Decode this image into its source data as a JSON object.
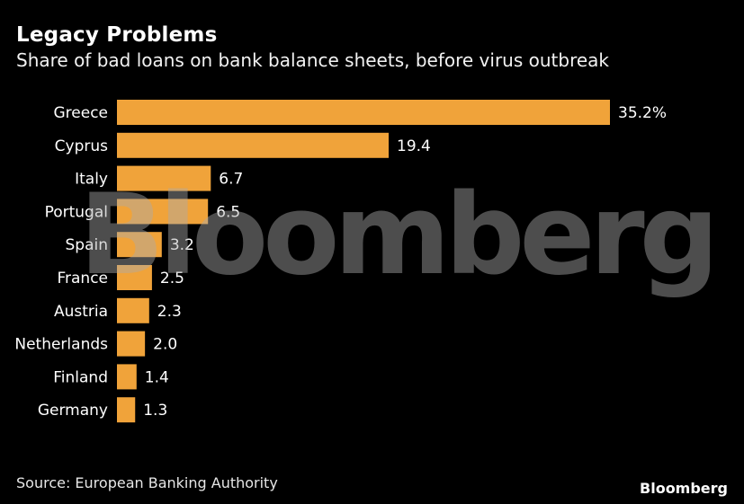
{
  "header": {
    "title": "Legacy Problems",
    "subtitle": "Share of bad loans on bank balance sheets, before virus outbreak"
  },
  "footer": {
    "source": "Source: European Banking Authority",
    "brand": "Bloomberg"
  },
  "watermark": "Bloomberg",
  "colors": {
    "background": "#000000",
    "bar": "#F0A33A",
    "text": "#FFFFFF"
  },
  "chart_data": {
    "type": "bar",
    "orientation": "horizontal",
    "categories": [
      "Greece",
      "Cyprus",
      "Italy",
      "Portugal",
      "Spain",
      "France",
      "Austria",
      "Netherlands",
      "Finland",
      "Germany"
    ],
    "values": [
      35.2,
      19.4,
      6.7,
      6.5,
      3.2,
      2.5,
      2.3,
      2.0,
      1.4,
      1.3
    ],
    "value_labels": [
      "35.2%",
      "19.4",
      "6.7",
      "6.5",
      "3.2",
      "2.5",
      "2.3",
      "2.0",
      "1.4",
      "1.3"
    ],
    "title": "Legacy Problems",
    "subtitle": "Share of bad loans on bank balance sheets, before virus outbreak",
    "xlabel": "",
    "ylabel": "",
    "xlim": [
      0,
      35.2
    ],
    "grid": false,
    "legend": "none"
  }
}
